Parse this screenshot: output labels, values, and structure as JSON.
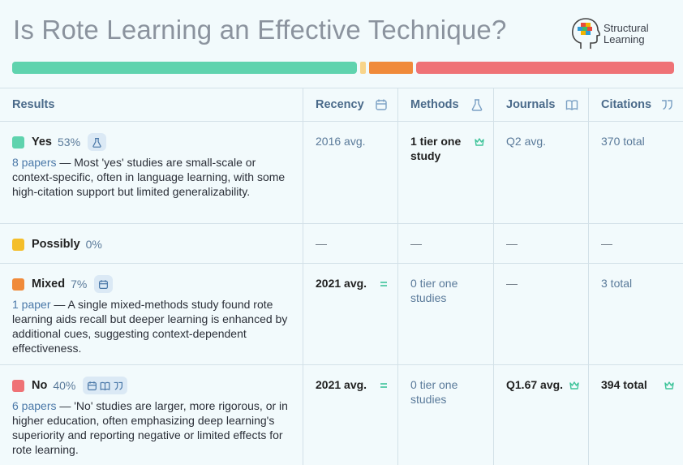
{
  "title": "Is Rote Learning an Effective Technique?",
  "logo": {
    "line1": "Structural",
    "line2": "Learning"
  },
  "distribution": [
    {
      "key": "yes",
      "percent": 53,
      "color": "#5fd3ae"
    },
    {
      "key": "possibly",
      "percent": 0,
      "color": "#f8d48a"
    },
    {
      "key": "mixed",
      "percent": 7,
      "color": "#f08a3a"
    },
    {
      "key": "no",
      "percent": 40,
      "color": "#ef7276"
    }
  ],
  "headers": {
    "results": "Results",
    "recency": "Recency",
    "methods": "Methods",
    "journals": "Journals",
    "citations": "Citations"
  },
  "rows": {
    "yes": {
      "label": "Yes",
      "pct": "53%",
      "papers": "8 papers",
      "desc": " — Most 'yes' studies are small-scale or context-specific, often in language learning, with some high-citation support but limited generalizability.",
      "recency": "2016 avg.",
      "methods": "1 tier one study",
      "journals": "Q2 avg.",
      "citations": "370 total"
    },
    "possibly": {
      "label": "Possibly",
      "pct": "0%",
      "recency": "—",
      "methods": "—",
      "journals": "—",
      "citations": "—"
    },
    "mixed": {
      "label": "Mixed",
      "pct": "7%",
      "papers": "1 paper",
      "desc": " — A single mixed-methods study found rote learning aids recall but deeper learning is enhanced by additional cues, suggesting context-dependent effectiveness.",
      "recency": "2021 avg.",
      "methods": "0 tier one studies",
      "journals": "—",
      "citations": "3 total"
    },
    "no": {
      "label": "No",
      "pct": "40%",
      "papers": "6 papers",
      "desc": " — 'No' studies are larger, more rigorous, or in higher education, often emphasizing deep learning's superiority and reporting negative or limited effects for rote learning.",
      "recency": "2021 avg.",
      "methods": "0 tier one studies",
      "journals": "Q1.67 avg.",
      "citations": "394 total"
    }
  }
}
